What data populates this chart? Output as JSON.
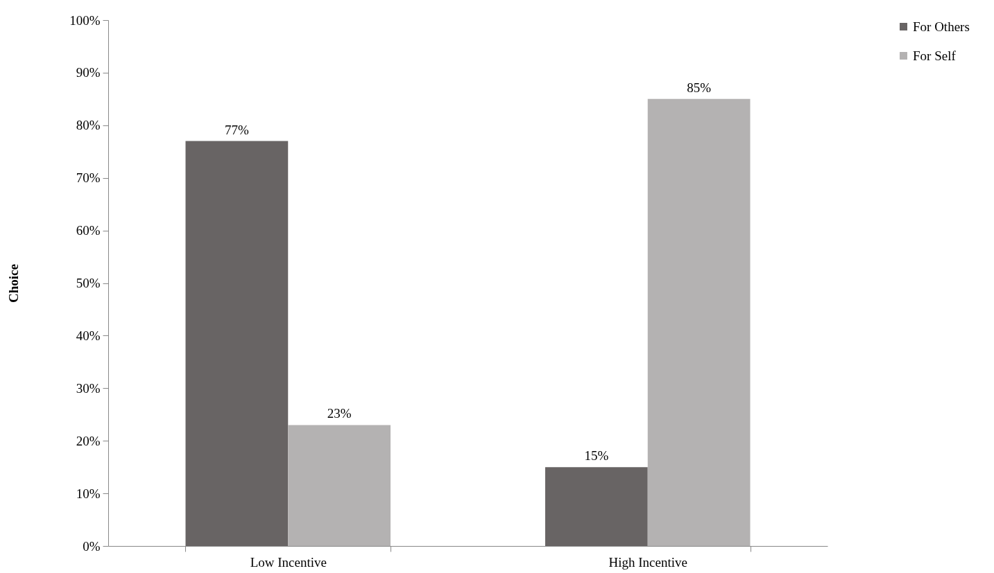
{
  "chart_data": {
    "type": "bar",
    "ylabel": "Choice",
    "categories": [
      "Low Incentive",
      "High Incentive"
    ],
    "series": [
      {
        "name": "For Others",
        "color": "#686464",
        "values": [
          77,
          15
        ],
        "value_labels": [
          "77%",
          "15%"
        ]
      },
      {
        "name": "For Self",
        "color": "#b4b2b2",
        "values": [
          23,
          85
        ],
        "value_labels": [
          "23%",
          "85%"
        ]
      }
    ],
    "ylim": [
      0,
      100
    ],
    "yticks": [
      {
        "value": 0,
        "label": "0%"
      },
      {
        "value": 10,
        "label": "10%"
      },
      {
        "value": 20,
        "label": "20%"
      },
      {
        "value": 30,
        "label": "30%"
      },
      {
        "value": 40,
        "label": "40%"
      },
      {
        "value": 50,
        "label": "50%"
      },
      {
        "value": 60,
        "label": "60%"
      },
      {
        "value": 70,
        "label": "70%"
      },
      {
        "value": 80,
        "label": "80%"
      },
      {
        "value": 90,
        "label": "90%"
      },
      {
        "value": 100,
        "label": "100%"
      }
    ],
    "legend": "right"
  }
}
